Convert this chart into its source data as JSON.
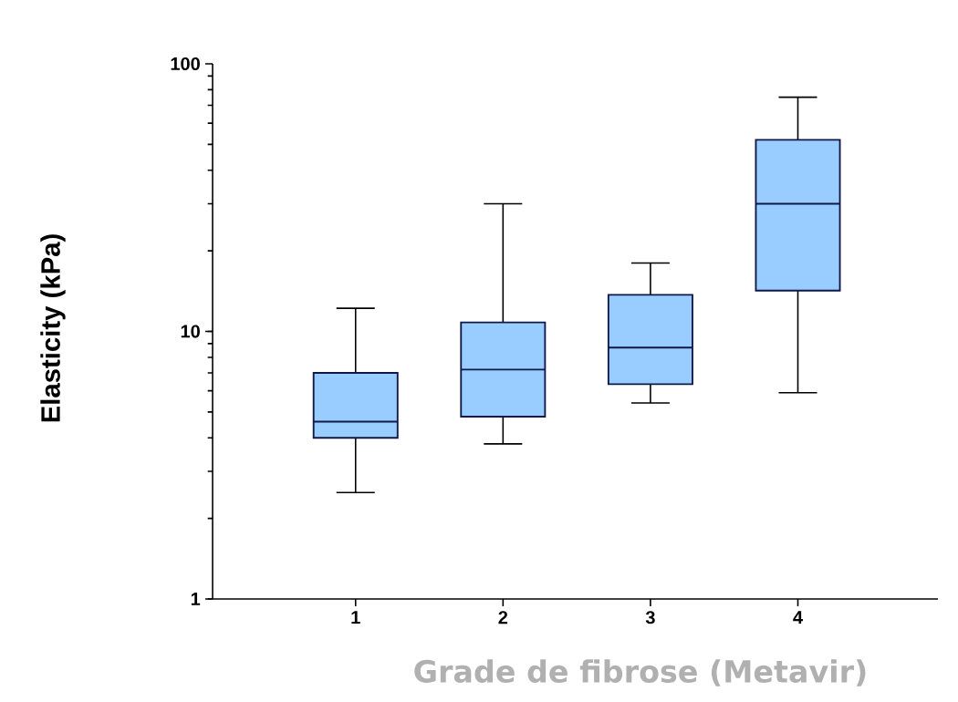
{
  "chart_data": {
    "type": "box",
    "xlabel": "Grade de fibrose (Metavir)",
    "ylabel": "Elasticity (kPa)",
    "categories": [
      "1",
      "2",
      "3",
      "4"
    ],
    "series": [
      {
        "color": "#99ccff",
        "boxes": [
          {
            "low": 2.5,
            "q1": 4.0,
            "median": 4.6,
            "q3": 7.0,
            "high": 12.2
          },
          {
            "low": 3.8,
            "q1": 4.8,
            "median": 7.2,
            "q3": 10.8,
            "high": 30
          },
          {
            "low": 5.4,
            "q1": 6.35,
            "median": 8.7,
            "q3": 13.7,
            "high": 18
          },
          {
            "low": 5.9,
            "q1": 14.2,
            "median": 30,
            "q3": 52,
            "high": 75
          }
        ]
      }
    ],
    "ylim": [
      1,
      100
    ],
    "yticks": [
      1,
      10,
      100
    ],
    "log": true
  }
}
